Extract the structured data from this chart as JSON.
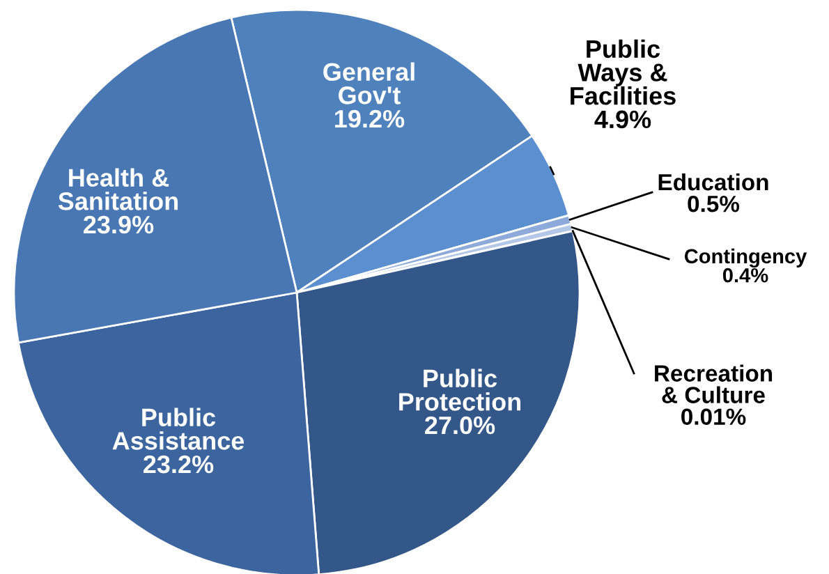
{
  "chart_data": {
    "type": "pie",
    "categories": [
      "General Gov't",
      "Public Ways & Facilities",
      "Education",
      "Contingency",
      "Recreation & Culture",
      "Public Protection",
      "Public Assistance",
      "Health & Sanitation"
    ],
    "values": [
      19.2,
      4.9,
      0.5,
      0.4,
      0.01,
      27.0,
      23.2,
      23.9
    ],
    "value_labels": [
      "19.2%",
      "4.9%",
      "0.5%",
      "0.4%",
      "0.01%",
      "27.0%",
      "23.2%",
      "23.9%"
    ],
    "colors": [
      "#4f81bd",
      "#5b8fd0",
      "#8eaadb",
      "#b4c7e7",
      "#c9d7ee",
      "#34578a",
      "#3c659f",
      "#4877b4"
    ],
    "legend": false
  }
}
